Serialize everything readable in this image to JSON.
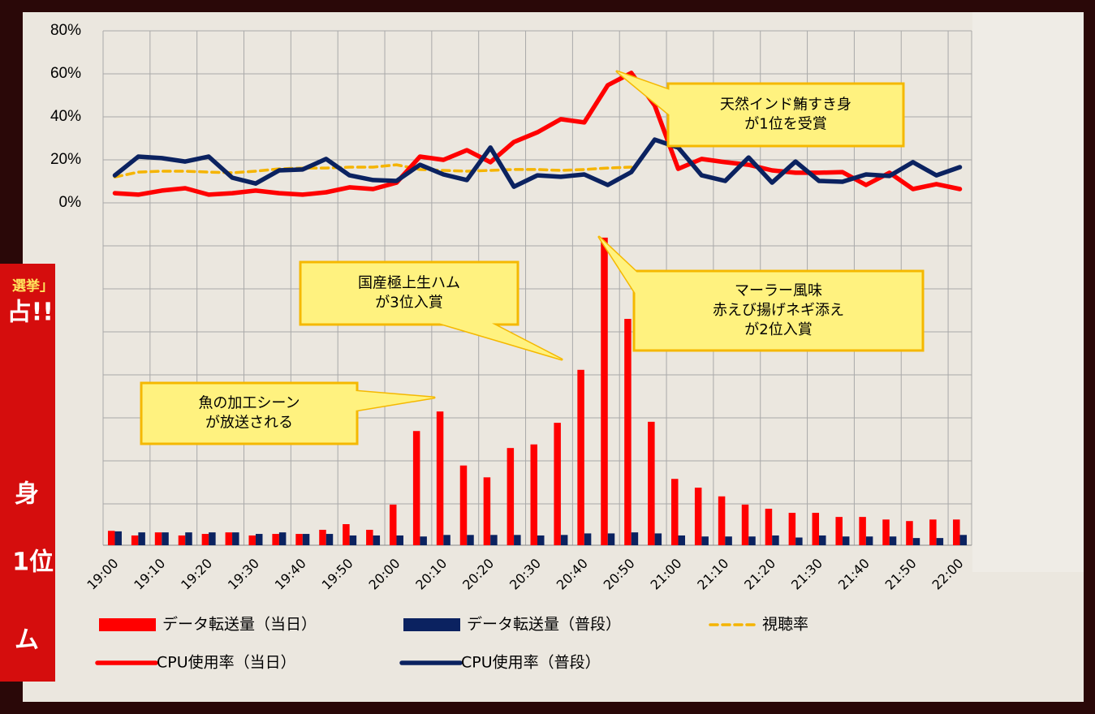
{
  "chart_data": {
    "type": "combo",
    "categories": [
      "19:00",
      null,
      "19:10",
      null,
      "19:20",
      null,
      "19:30",
      null,
      "19:40",
      null,
      "19:50",
      null,
      "20:00",
      null,
      "20:10",
      null,
      "20:20",
      null,
      "20:30",
      null,
      "20:40",
      null,
      "20:50",
      null,
      "21:00",
      null,
      "21:10",
      null,
      "21:20",
      null,
      "21:30",
      null,
      "21:40",
      null,
      "21:50",
      null,
      "22:00"
    ],
    "ylim": [
      0,
      80
    ],
    "yticks": [
      {
        "value": 0,
        "label": "0%"
      },
      {
        "value": 20,
        "label": "20%"
      },
      {
        "value": 40,
        "label": "40%"
      },
      {
        "value": 60,
        "label": "60%"
      },
      {
        "value": 80,
        "label": "80%"
      }
    ],
    "y2lim": [
      0,
      10
    ],
    "grid": true,
    "legend": "bottom",
    "series": [
      {
        "name": "データ転送量（当日）",
        "type": "bar",
        "axis": "y2",
        "color": "#ff0000",
        "values": [
          0.28,
          0.19,
          0.25,
          0.19,
          0.22,
          0.25,
          0.19,
          0.22,
          0.22,
          0.3,
          0.41,
          0.3,
          0.79,
          2.22,
          2.6,
          1.55,
          1.32,
          1.89,
          1.96,
          2.38,
          3.41,
          5.98,
          4.4,
          2.4,
          1.29,
          1.12,
          0.95,
          0.79,
          0.71,
          0.63,
          0.63,
          0.55,
          0.55,
          0.5,
          0.47,
          0.5,
          0.5
        ]
      },
      {
        "name": "データ転送量（普段）",
        "type": "bar",
        "axis": "y2",
        "color": "#0b2260",
        "values": [
          0.27,
          0.25,
          0.25,
          0.25,
          0.25,
          0.25,
          0.22,
          0.25,
          0.22,
          0.22,
          0.19,
          0.19,
          0.19,
          0.17,
          0.2,
          0.2,
          0.2,
          0.2,
          0.19,
          0.2,
          0.23,
          0.23,
          0.25,
          0.23,
          0.19,
          0.17,
          0.17,
          0.17,
          0.19,
          0.15,
          0.19,
          0.17,
          0.17,
          0.17,
          0.14,
          0.14,
          0.2
        ]
      },
      {
        "name": "視聴率",
        "type": "line",
        "dash": true,
        "color": "#f5b400",
        "values": [
          12,
          14.3,
          14.7,
          14.7,
          14.3,
          14,
          14.7,
          15.8,
          16.2,
          16.2,
          16.6,
          16.6,
          17.7,
          15.5,
          15.1,
          14.7,
          15.1,
          15.5,
          15.5,
          15.1,
          15.5,
          16.2,
          16.6,
          null,
          null,
          null,
          null,
          null,
          null,
          null,
          null,
          null,
          null,
          null,
          null,
          null,
          null
        ]
      },
      {
        "name": "CPU使用率（当日）",
        "type": "line",
        "color": "#ff0000",
        "values": [
          4.5,
          3.8,
          5.7,
          6.8,
          3.8,
          4.5,
          5.7,
          4.5,
          3.8,
          4.9,
          7.2,
          6.4,
          9.4,
          21.5,
          20,
          24.5,
          18.9,
          28.3,
          32.8,
          38.9,
          37.4,
          54.7,
          60.4,
          45.3,
          15.8,
          20.4,
          18.9,
          17.7,
          15.1,
          14,
          14,
          14.3,
          8.3,
          14,
          6.4,
          8.7,
          6.4
        ]
      },
      {
        "name": "CPU使用率（普段）",
        "type": "line",
        "color": "#0b2260",
        "values": [
          12.8,
          21.5,
          20.8,
          19.2,
          21.5,
          11.7,
          9,
          15.1,
          15.5,
          20.4,
          12.8,
          10.6,
          10.2,
          17.7,
          13.2,
          10.6,
          25.7,
          7.5,
          12.8,
          12.1,
          13.2,
          8.3,
          14.3,
          29.4,
          25.7,
          12.8,
          10.2,
          21.1,
          9.4,
          19.2,
          10.2,
          9.8,
          13.2,
          12.5,
          18.9,
          12.8,
          16.6
        ]
      }
    ],
    "annotations": [
      {
        "lines": [
          "天然インド鮪すき身",
          "が1位を受賞"
        ]
      },
      {
        "lines": [
          "国産極上生ハム",
          "が3位入賞"
        ]
      },
      {
        "lines": [
          "マーラー風味",
          "赤えび揚げネギ添え",
          "が2位入賞"
        ]
      },
      {
        "lines": [
          "魚の加工シーン",
          "が放送される"
        ]
      }
    ]
  },
  "poster": {
    "texts": [
      "選挙」",
      "占!!",
      "身",
      "1位",
      "ム"
    ]
  }
}
